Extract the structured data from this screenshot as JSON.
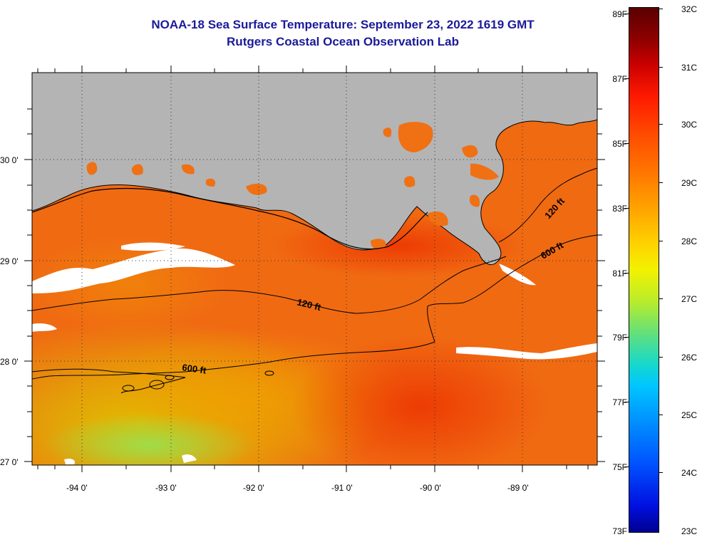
{
  "title": {
    "line1": "NOAA-18 Sea Surface Temperature:  September 23, 2022 1619 GMT",
    "line2": "Rutgers Coastal Ocean Observation Lab"
  },
  "map": {
    "lon_labels": [
      "-94 0'",
      "-93 0'",
      "-92 0'",
      "-91 0'",
      "-90 0'",
      "-89 0'"
    ],
    "lat_labels": [
      "30 0'",
      "29 0'",
      "28 0'",
      "27 0'"
    ],
    "contour_labels": [
      "120 ft",
      "600 ft",
      "120 ft",
      "600 ft"
    ],
    "colors": {
      "land": "#b4b4b4",
      "cloud": "#ffffff",
      "contour": "#000000"
    }
  },
  "colorbar": {
    "fahrenheit": [
      "89F",
      "87F",
      "85F",
      "83F",
      "81F",
      "79F",
      "77F",
      "75F",
      "73F"
    ],
    "celsius": [
      "32C",
      "31C",
      "30C",
      "29C",
      "28C",
      "27C",
      "26C",
      "25C",
      "24C",
      "23C"
    ]
  }
}
